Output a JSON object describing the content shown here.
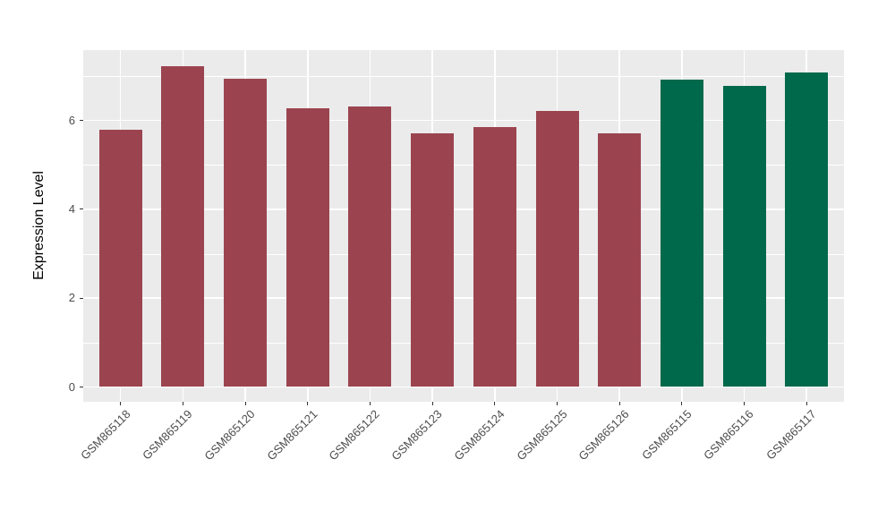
{
  "chart_data": {
    "type": "bar",
    "title": "",
    "xlabel": "",
    "ylabel": "Expression Level",
    "categories": [
      "GSM865118",
      "GSM865119",
      "GSM865120",
      "GSM865121",
      "GSM865122",
      "GSM865123",
      "GSM865124",
      "GSM865125",
      "GSM865126",
      "GSM865115",
      "GSM865116",
      "GSM865117"
    ],
    "values": [
      5.8,
      7.22,
      6.93,
      6.28,
      6.31,
      5.71,
      5.85,
      6.21,
      5.72,
      6.92,
      6.78,
      7.08
    ],
    "bar_groups": [
      "maroon",
      "maroon",
      "maroon",
      "maroon",
      "maroon",
      "maroon",
      "maroon",
      "maroon",
      "maroon",
      "green",
      "green",
      "green"
    ],
    "palette": {
      "maroon": "#9B4450",
      "green": "#00694B"
    },
    "yticks": [
      0,
      2,
      4,
      6
    ],
    "yticks_minor": [
      1,
      3,
      5,
      7
    ],
    "ylim": [
      0,
      7.58
    ],
    "x_label_angle": 45,
    "legend": "none",
    "grid": "on",
    "panel_background": "#EBEBEB",
    "grid_color": "#FFFFFF",
    "axis_text_color": "#4D4D4D",
    "axis_title_color": "#000000"
  }
}
